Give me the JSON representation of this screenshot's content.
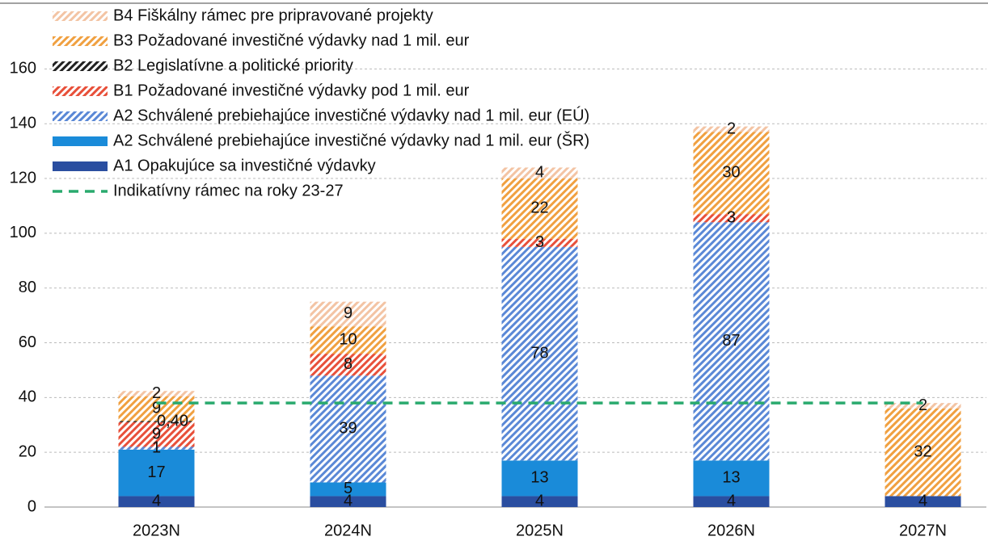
{
  "chart_data": {
    "type": "stacked_bar",
    "categories": [
      "2023N",
      "2024N",
      "2025N",
      "2026N",
      "2027N"
    ],
    "series": [
      {
        "name": "A1 Opakujúce sa investičné výdavky",
        "color": "#2a4ea0",
        "hatched": false,
        "values": [
          4,
          4,
          4,
          4,
          4
        ]
      },
      {
        "name": "A2 Schválené prebiehajúce investičné výdavky nad 1 mil. eur (ŠR)",
        "color": "#1a8bd9",
        "hatched": false,
        "values": [
          17,
          5,
          13,
          13,
          null
        ]
      },
      {
        "name": "A2 Schválené prebiehajúce investičné výdavky nad 1 mil. eur (EÚ)",
        "color": "#5a88d6",
        "hatched": true,
        "values": [
          1,
          39,
          78,
          87,
          null
        ]
      },
      {
        "name": "B1 Požadované investičné výdavky pod 1 mil. eur",
        "color": "#e8503a",
        "hatched": true,
        "values": [
          9,
          8,
          3,
          3,
          null
        ]
      },
      {
        "name": "B2 Legislatívne a politické priority",
        "color": "#222222",
        "hatched": true,
        "values": [
          0.4,
          null,
          null,
          null,
          null
        ],
        "value_labels": [
          "0,40",
          null,
          null,
          null,
          null
        ]
      },
      {
        "name": "B3 Požadované investičné výdavky nad 1 mil. eur",
        "color": "#f0a040",
        "hatched": true,
        "values": [
          9,
          10,
          22,
          30,
          32
        ]
      },
      {
        "name": "B4 Fiškálny rámec pre pripravované projekty",
        "color": "#f3c4a4",
        "hatched": true,
        "values": [
          2,
          9,
          4,
          2,
          2
        ]
      }
    ],
    "line": {
      "name": "Indikatívny rámec na roky 23-27",
      "color": "#2aaa6e",
      "dashed": true,
      "values": [
        38,
        38,
        38,
        38,
        38
      ]
    },
    "ylim": [
      0,
      184
    ],
    "yticks": [
      0,
      20,
      40,
      60,
      80,
      100,
      120,
      140,
      160
    ],
    "grid": true,
    "legend": "upper left"
  }
}
